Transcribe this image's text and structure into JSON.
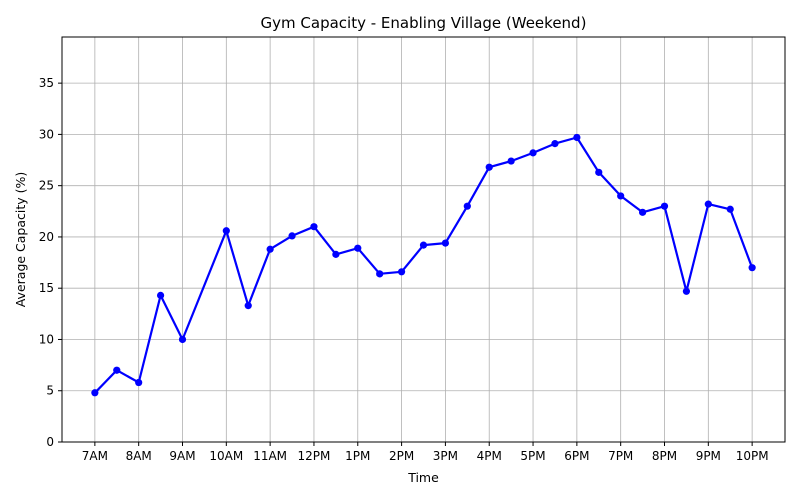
{
  "chart_data": {
    "type": "line",
    "title": "Gym Capacity - Enabling Village (Weekend)",
    "xlabel": "Time",
    "ylabel": "Average Capacity (%)",
    "ylim": [
      0,
      39.5
    ],
    "yticks": [
      0,
      5,
      10,
      15,
      20,
      25,
      30,
      35
    ],
    "xtick_labels": [
      "7AM",
      "8AM",
      "9AM",
      "10AM",
      "11AM",
      "12PM",
      "1PM",
      "2PM",
      "3PM",
      "4PM",
      "5PM",
      "6PM",
      "7PM",
      "8PM",
      "9PM",
      "10PM"
    ],
    "grid": true,
    "color": "#0000ff",
    "series": [
      {
        "x": [
          7,
          7.5,
          8,
          8.5,
          9,
          10,
          10.5,
          11,
          11.5,
          12,
          12.5,
          13,
          13.5,
          14,
          14.5,
          15,
          15.5,
          16,
          16.5,
          17,
          17.5,
          18,
          18.5,
          19,
          19.5,
          20,
          20.5,
          21,
          21.5,
          22
        ],
        "values": [
          4.8,
          7.0,
          5.8,
          14.3,
          10.0,
          20.6,
          13.3,
          18.8,
          20.1,
          21.0,
          18.3,
          18.9,
          16.4,
          16.6,
          19.2,
          19.4,
          23.0,
          26.8,
          27.4,
          28.2,
          29.1,
          29.7,
          26.3,
          24.0,
          22.4,
          23.0,
          14.7,
          23.2,
          22.7,
          17.0
        ]
      }
    ]
  }
}
